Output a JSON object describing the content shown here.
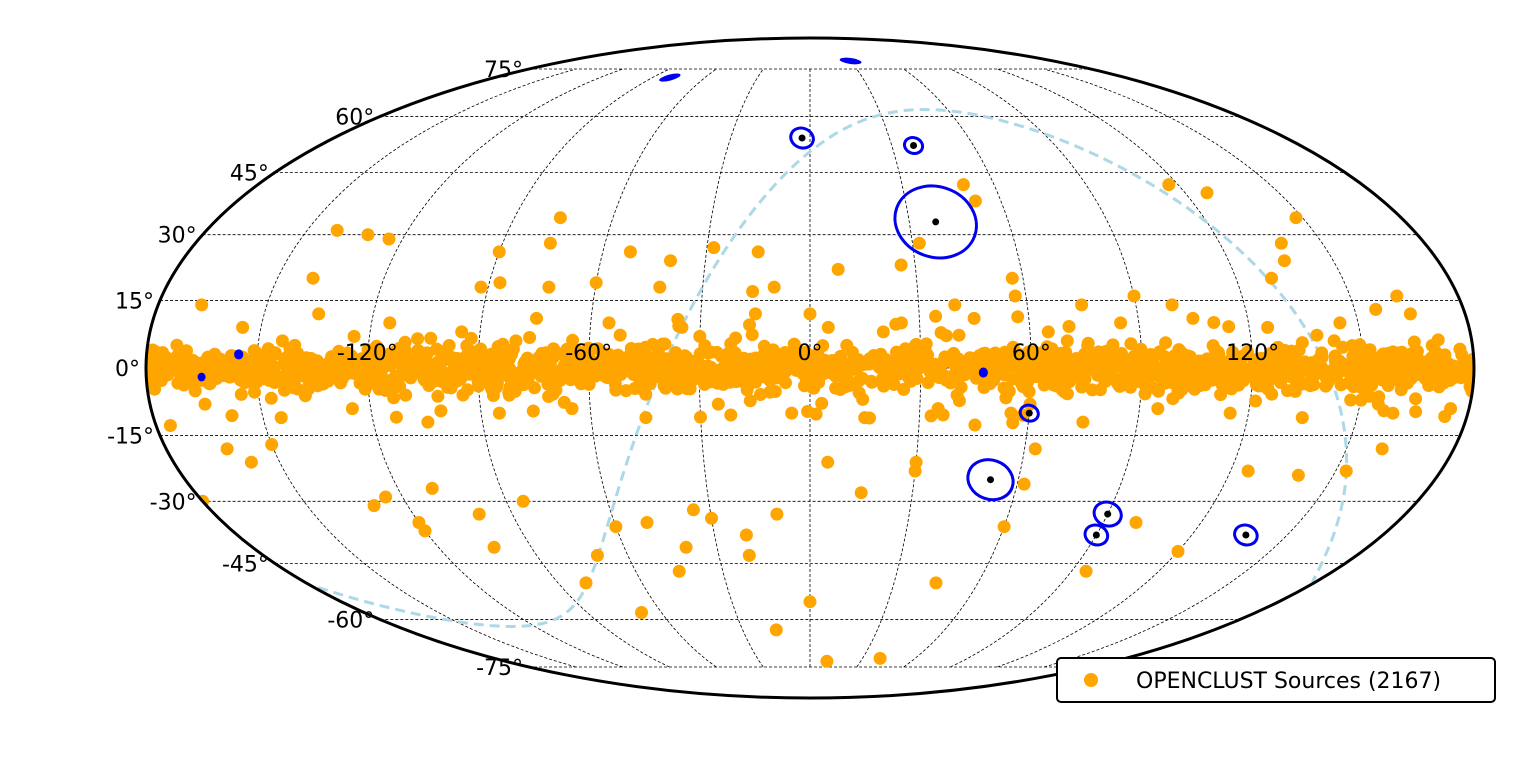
{
  "chart_data": {
    "type": "scatter",
    "projection": "mollweide",
    "grid": true,
    "legend_position": "bottom-right",
    "lon_ticks": [
      "-120°",
      "-60°",
      "0°",
      "60°",
      "120°"
    ],
    "lon_tick_values": [
      -120,
      -60,
      0,
      60,
      120
    ],
    "lat_ticks": [
      "75°",
      "60°",
      "45°",
      "30°",
      "15°",
      "0°",
      "-15°",
      "-30°",
      "-45°",
      "-60°",
      "-75°"
    ],
    "lat_tick_values": [
      75,
      60,
      45,
      30,
      15,
      0,
      -15,
      -30,
      -45,
      -60,
      -75
    ],
    "colors": {
      "sources": "#ffa500",
      "events": "#0000ee",
      "centers": "#000000",
      "galactic_plane": "#add8e6",
      "grid": "#000000"
    },
    "series": [
      {
        "name": "OPENCLUST Sources (2167)",
        "color": "#ffa500",
        "count": 2167,
        "sample_points": [
          [
            -160,
            2
          ],
          [
            -150,
            -3
          ],
          [
            -140,
            5
          ],
          [
            -130,
            -1
          ],
          [
            -120,
            4
          ],
          [
            -110,
            -6
          ],
          [
            -100,
            2
          ],
          [
            -90,
            -4
          ],
          [
            -80,
            6
          ],
          [
            -70,
            -2
          ],
          [
            -60,
            3
          ],
          [
            -50,
            -5
          ],
          [
            -40,
            1
          ],
          [
            -30,
            7
          ],
          [
            -20,
            -3
          ],
          [
            -10,
            4
          ],
          [
            0,
            -2
          ],
          [
            10,
            5
          ],
          [
            20,
            -4
          ],
          [
            30,
            2
          ],
          [
            40,
            -6
          ],
          [
            50,
            3
          ],
          [
            60,
            -1
          ],
          [
            70,
            6
          ],
          [
            80,
            -3
          ],
          [
            90,
            2
          ],
          [
            100,
            -5
          ],
          [
            110,
            4
          ],
          [
            120,
            -2
          ],
          [
            130,
            3
          ],
          [
            140,
            -4
          ],
          [
            150,
            1
          ],
          [
            160,
            -3
          ],
          [
            170,
            2
          ],
          [
            -170,
            1
          ],
          [
            -165,
            -8
          ],
          [
            -155,
            9
          ],
          [
            -145,
            -11
          ],
          [
            -135,
            12
          ],
          [
            -125,
            -9
          ],
          [
            -115,
            10
          ],
          [
            -105,
            -12
          ],
          [
            -95,
            8
          ],
          [
            -85,
            -10
          ],
          [
            -75,
            11
          ],
          [
            -65,
            -9
          ],
          [
            -55,
            10
          ],
          [
            -45,
            -11
          ],
          [
            -35,
            9
          ],
          [
            -25,
            -8
          ],
          [
            -15,
            12
          ],
          [
            -5,
            -10
          ],
          [
            5,
            9
          ],
          [
            15,
            -11
          ],
          [
            25,
            10
          ],
          [
            35,
            -9
          ],
          [
            45,
            11
          ],
          [
            55,
            -10
          ],
          [
            65,
            8
          ],
          [
            75,
            -12
          ],
          [
            85,
            10
          ],
          [
            95,
            -9
          ],
          [
            105,
            11
          ],
          [
            115,
            -10
          ],
          [
            125,
            9
          ],
          [
            135,
            -11
          ],
          [
            145,
            10
          ],
          [
            155,
            -8
          ],
          [
            165,
            12
          ],
          [
            175,
            -9
          ],
          [
            -163,
            -18
          ],
          [
            -158,
            -21
          ],
          [
            -150,
            -17
          ],
          [
            -140,
            20
          ],
          [
            -92,
            18
          ],
          [
            -87,
            19
          ],
          [
            -76,
            28
          ],
          [
            -76,
            34
          ],
          [
            -40,
            24
          ],
          [
            -15,
            26
          ],
          [
            -28,
            27
          ],
          [
            -16,
            17
          ],
          [
            8,
            22
          ],
          [
            26,
            23
          ],
          [
            32,
            28
          ],
          [
            50,
            42
          ],
          [
            52,
            38
          ],
          [
            57,
            20
          ],
          [
            57,
            16
          ],
          [
            75,
            14
          ],
          [
            90,
            16
          ],
          [
            100,
            14
          ],
          [
            117,
            42
          ],
          [
            127,
            40
          ],
          [
            130,
            20
          ],
          [
            136,
            24
          ],
          [
            138,
            28
          ],
          [
            148,
            34
          ],
          [
            163,
            16
          ],
          [
            -141,
            31
          ],
          [
            -131,
            30
          ],
          [
            -124,
            29
          ],
          [
            -168,
            14
          ],
          [
            -60,
            19
          ],
          [
            -52,
            26
          ],
          [
            -42,
            18
          ],
          [
            20,
            8
          ],
          [
            -180,
            -30
          ],
          [
            -130,
            -31
          ],
          [
            -120,
            -35
          ],
          [
            -125,
            -29
          ],
          [
            -110,
            -27
          ],
          [
            -100,
            -33
          ],
          [
            -85,
            -30
          ],
          [
            -80,
            -50
          ],
          [
            -70,
            -43
          ],
          [
            -60,
            -36
          ],
          [
            -50,
            -35
          ],
          [
            -45,
            -47
          ],
          [
            -40,
            -41
          ],
          [
            -30,
            -34
          ],
          [
            -20,
            -43
          ],
          [
            -10,
            -33
          ],
          [
            -20,
            -38
          ],
          [
            -15,
            -63
          ],
          [
            5,
            -21
          ],
          [
            0,
            -55
          ],
          [
            10,
            -73
          ],
          [
            15,
            -28
          ],
          [
            30,
            -21
          ],
          [
            40,
            -72
          ],
          [
            62,
            -26
          ],
          [
            60,
            -36
          ],
          [
            45,
            -50
          ],
          [
            95,
            -47
          ],
          [
            100,
            -35
          ],
          [
            140,
            -24
          ],
          [
            153,
            -23
          ],
          [
            160,
            -18
          ],
          [
            120,
            -42
          ],
          [
            125,
            -23
          ],
          [
            -102,
            -41
          ],
          [
            -120,
            -37
          ],
          [
            -35,
            -32
          ],
          [
            -68,
            -58
          ],
          [
            -73,
            18
          ],
          [
            -90,
            26
          ],
          [
            0,
            12
          ],
          [
            -10,
            18
          ],
          [
            40,
            14
          ],
          [
            60,
            -8
          ],
          [
            30,
            -23
          ],
          [
            63,
            -18
          ]
        ]
      }
    ],
    "event_regions": [
      {
        "lon": -80,
        "lat": 72,
        "shape": "strip",
        "color": "#0000ee"
      },
      {
        "lon": 30,
        "lat": 78,
        "shape": "strip",
        "color": "#0000ee"
      },
      {
        "lon": -3,
        "lat": 54,
        "radius": 2.5,
        "center": true
      },
      {
        "lon": 38,
        "lat": 52,
        "radius": 2,
        "center": true
      },
      {
        "lon": 38,
        "lat": 33,
        "radius": 9,
        "center": true
      },
      {
        "lon": 47,
        "lat": -1,
        "radius": 1,
        "center": false
      },
      {
        "lon": 60,
        "lat": -10,
        "radius": 2,
        "center": true
      },
      {
        "lon": 52,
        "lat": -25,
        "radius": 5,
        "center": true
      },
      {
        "lon": 90,
        "lat": -33,
        "radius": 3,
        "center": true
      },
      {
        "lon": 90,
        "lat": -38,
        "radius": 2.5,
        "center": true
      },
      {
        "lon": 137,
        "lat": -38,
        "radius": 2.5,
        "center": true
      },
      {
        "lon": -155,
        "lat": 3,
        "radius": 1,
        "center": false
      },
      {
        "lon": -165,
        "lat": -2,
        "radius": 0.8,
        "center": false
      }
    ]
  }
}
